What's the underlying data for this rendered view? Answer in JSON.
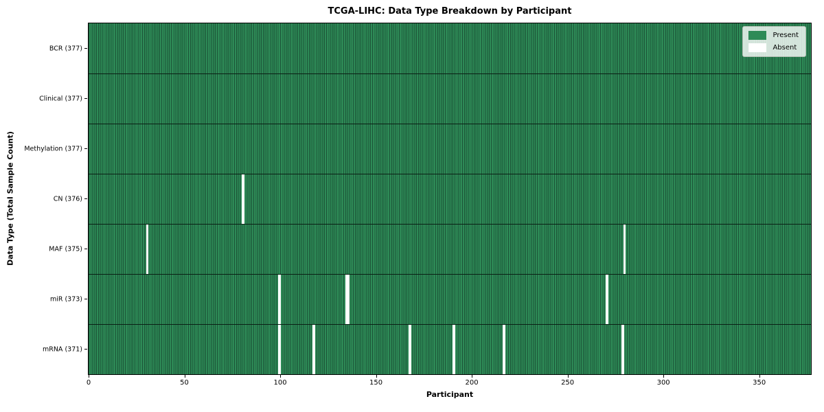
{
  "figure": {
    "title": "TCGA-LIHC: Data Type Breakdown by Participant",
    "xlabel": "Participant",
    "ylabel": "Data Type (Total Sample Count)"
  },
  "legend": {
    "items": [
      {
        "label": "Present",
        "color": "#2e8b57"
      },
      {
        "label": "Absent",
        "color": "#ffffff"
      }
    ]
  },
  "chart_data": {
    "type": "heatmap",
    "title": "TCGA-LIHC: Data Type Breakdown by Participant",
    "xlabel": "Participant",
    "ylabel": "Data Type (Total Sample Count)",
    "x_ticks": [
      0,
      50,
      100,
      150,
      200,
      250,
      300,
      350
    ],
    "x_range": [
      0,
      377
    ],
    "n_participants": 377,
    "legend_position": "upper right",
    "grid": "cell-edges",
    "colors": {
      "present": "#2e8b57",
      "absent": "#ffffff",
      "cell_edge": "#1b5236"
    },
    "rows": [
      {
        "name": "BCR",
        "label": "BCR (377)",
        "present_count": 377,
        "absent_participants": []
      },
      {
        "name": "Clinical",
        "label": "Clinical (377)",
        "present_count": 377,
        "absent_participants": []
      },
      {
        "name": "Methylation",
        "label": "Methylation (377)",
        "present_count": 377,
        "absent_participants": []
      },
      {
        "name": "CN",
        "label": "CN (376)",
        "present_count": 376,
        "absent_participants": [
          80
        ]
      },
      {
        "name": "MAF",
        "label": "MAF (375)",
        "present_count": 375,
        "absent_participants": [
          30,
          279
        ]
      },
      {
        "name": "miR",
        "label": "miR (373)",
        "present_count": 373,
        "absent_participants": [
          99,
          134,
          135,
          270
        ]
      },
      {
        "name": "mRNA",
        "label": "mRNA (371)",
        "present_count": 371,
        "absent_participants": [
          99,
          117,
          167,
          190,
          216,
          278
        ]
      }
    ]
  }
}
